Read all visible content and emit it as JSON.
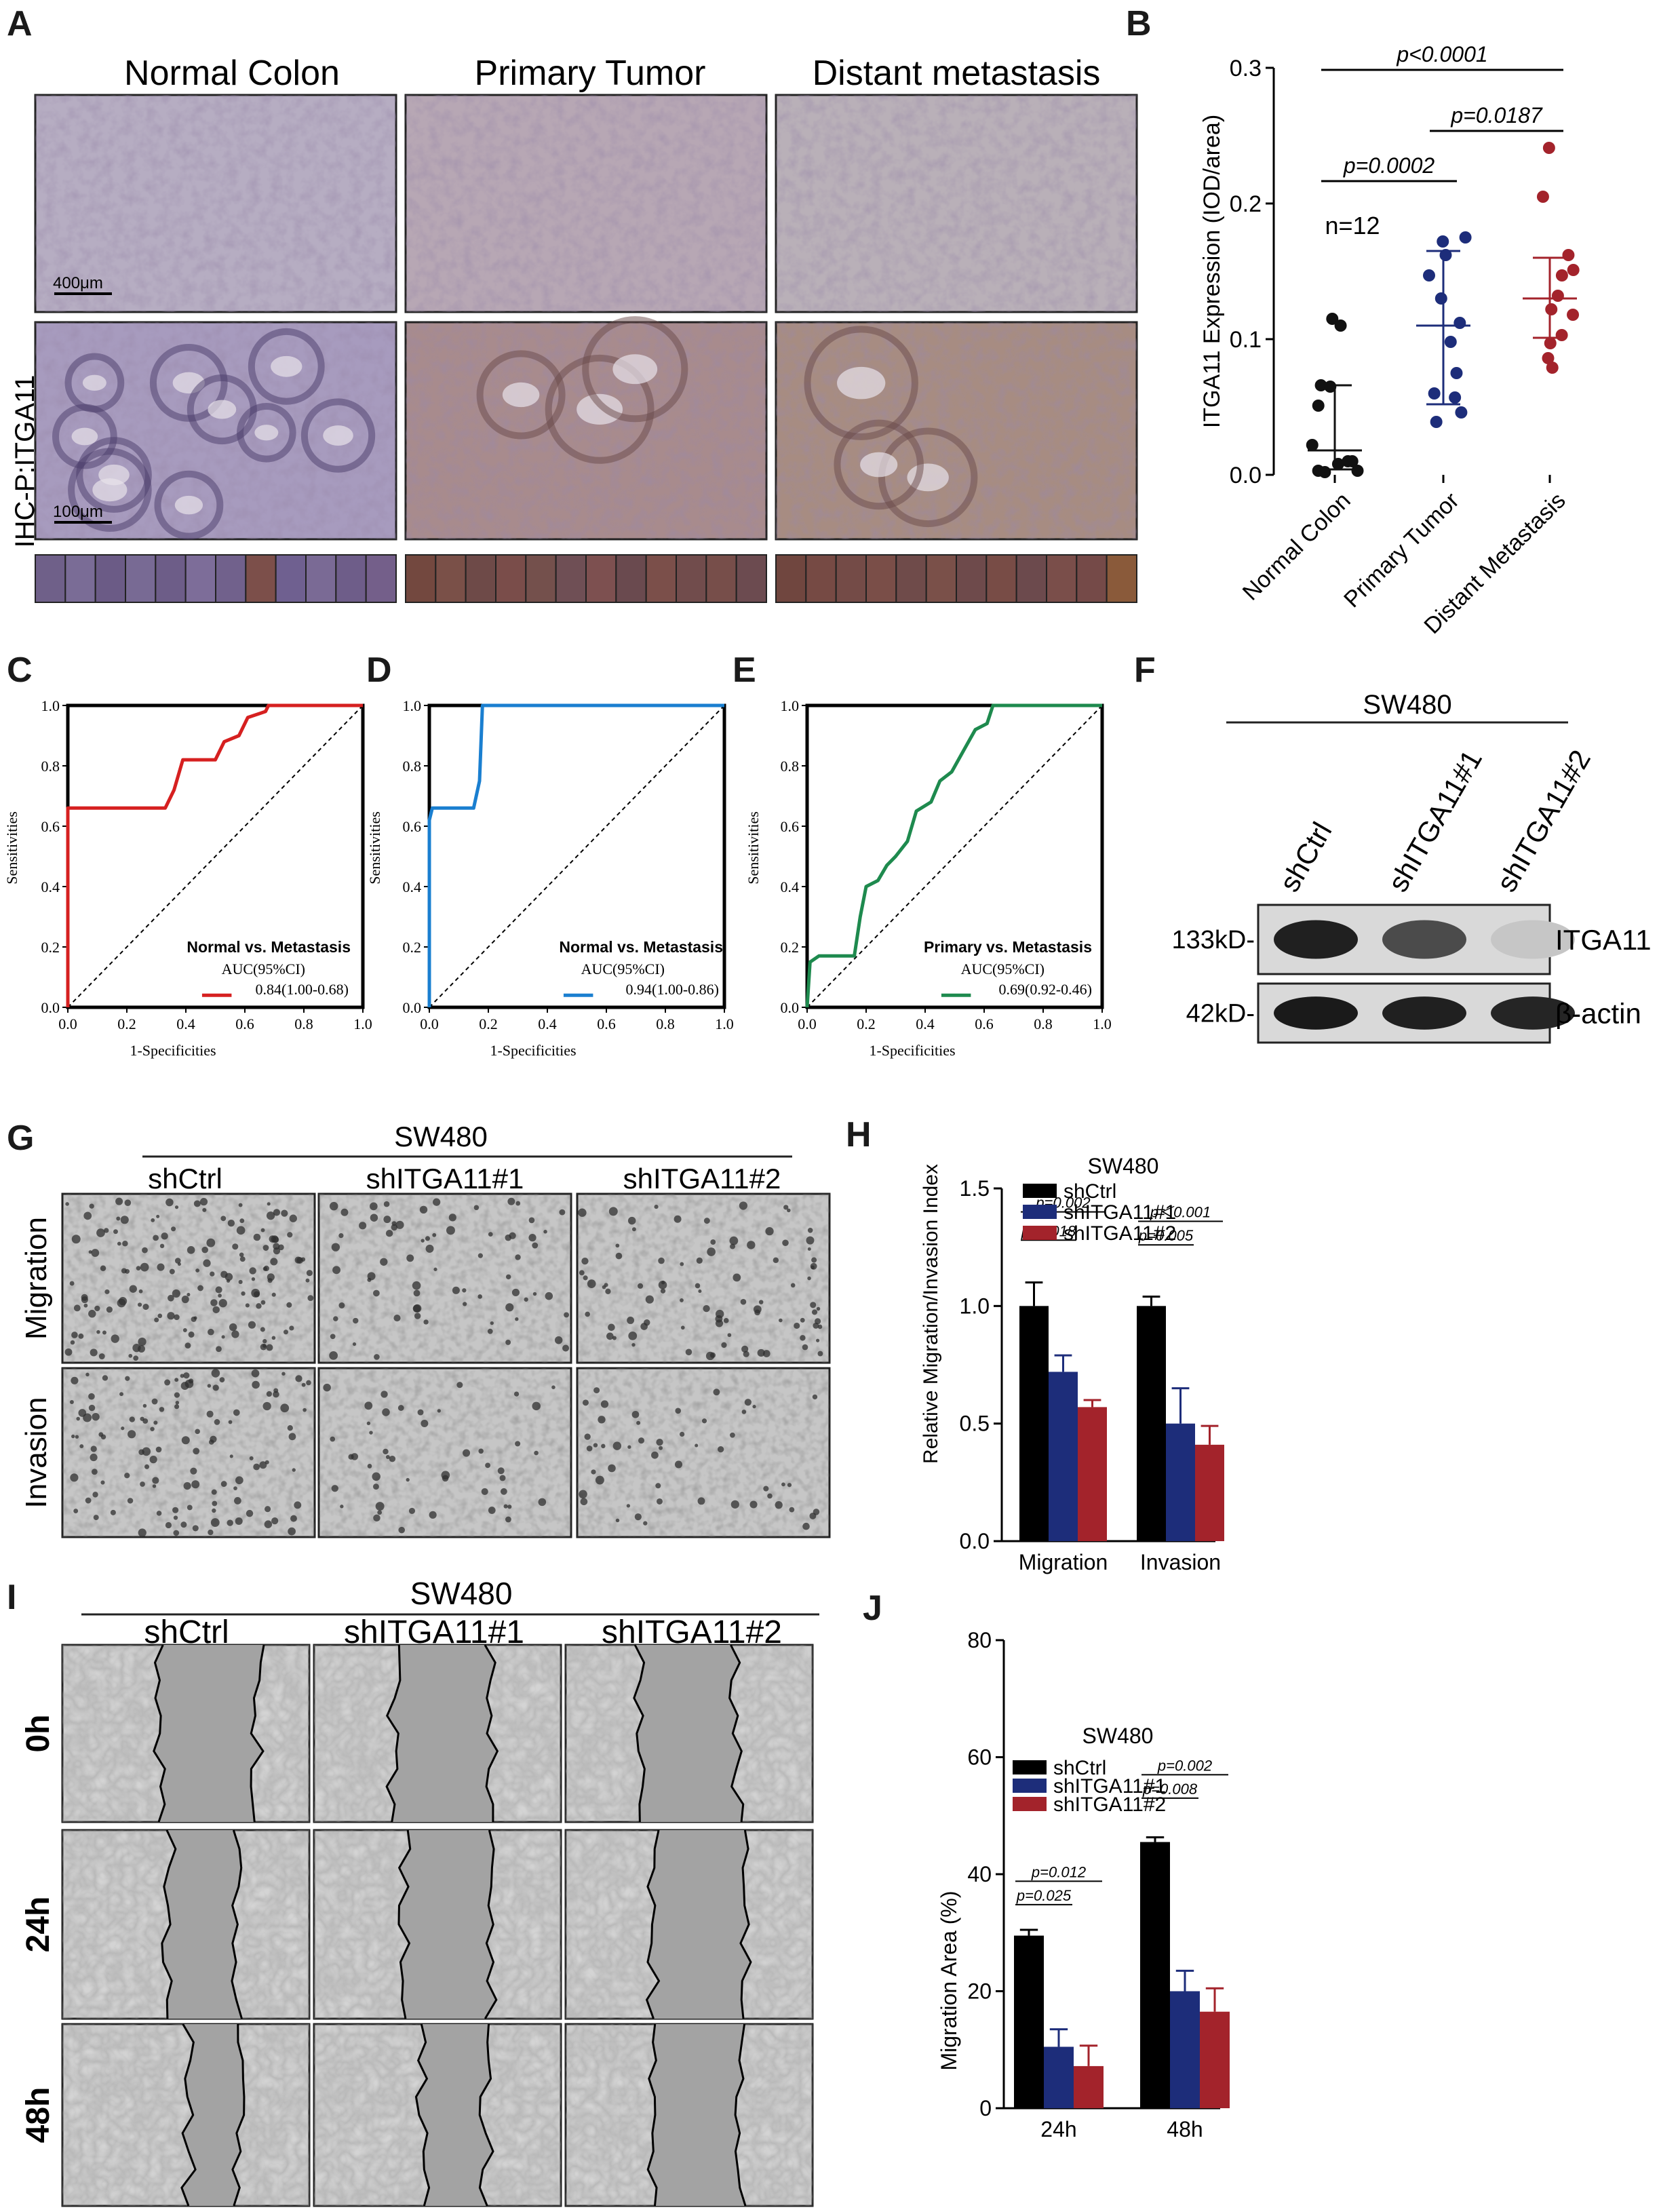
{
  "panels": {
    "A": {
      "letter": "A",
      "columns": [
        "Normal Colon",
        "Primary Tumor",
        "Distant metastasis"
      ],
      "row_label": "IHC-P:ITGA11",
      "scale_top": "400μm",
      "scale_bottom": "100μm",
      "swatches": [
        [
          "#6f6089",
          "#7a6c96",
          "#6b5b86",
          "#786a94",
          "#6d5d88",
          "#7d6d99",
          "#71618c",
          "#7c4f4a",
          "#6f6090",
          "#7a6a95",
          "#6e5d89",
          "#745f8a"
        ],
        [
          "#73483f",
          "#7a5048",
          "#6e4a48",
          "#7a4d4a",
          "#74504c",
          "#6f4f55",
          "#7d5050",
          "#6a4a4f",
          "#7b4f4a",
          "#714c4c",
          "#774e4a",
          "#6c4b50"
        ],
        [
          "#70463f",
          "#764a44",
          "#744b47",
          "#7a4e48",
          "#6f4b4a",
          "#7a5049",
          "#6e4a4b",
          "#784c46",
          "#6c4a4d",
          "#7a4e4a",
          "#754a48",
          "#8a5a3a"
        ]
      ]
    },
    "B": {
      "letter": "B",
      "chart_data": {
        "type": "scatter",
        "ylabel": "ITGA11 Expression (IOD/area)",
        "ylim": [
          0,
          0.3
        ],
        "yticks": [
          "0.0",
          "0.1",
          "0.2",
          "0.3"
        ],
        "categories": [
          "Normal Colon",
          "Primary Tumor",
          "Distant Metastasis"
        ],
        "annotation": "n=12",
        "series": [
          {
            "values": [
              0.115,
              0.11,
              0.066,
              0.065,
              0.051,
              0.022,
              0.01,
              0.008,
              0.01,
              0.003,
              0.002,
              0.003
            ],
            "median": 0.018,
            "q1": 0.004,
            "q3": 0.066,
            "color": "#111111"
          },
          {
            "values": [
              0.175,
              0.172,
              0.162,
              0.147,
              0.13,
              0.112,
              0.098,
              0.075,
              0.06,
              0.057,
              0.046,
              0.039
            ],
            "median": 0.11,
            "q1": 0.052,
            "q3": 0.165,
            "color": "#1d2d7a"
          },
          {
            "values": [
              0.241,
              0.205,
              0.162,
              0.151,
              0.147,
              0.132,
              0.122,
              0.118,
              0.103,
              0.097,
              0.086,
              0.079
            ],
            "median": 0.13,
            "q1": 0.101,
            "q3": 0.16,
            "color": "#a3232b"
          }
        ],
        "comparisons": [
          {
            "text": "p<0.0001",
            "from": 0,
            "to": 2,
            "level": 0.2985
          },
          {
            "text": "p=0.0187",
            "from": 1,
            "to": 2,
            "level": 0.2535
          },
          {
            "text": "p=0.0002",
            "from": 0,
            "to": 1,
            "level": 0.2165
          }
        ]
      }
    },
    "C": {
      "letter": "C",
      "chart_data": {
        "type": "line",
        "title": "Normal vs. Metastasis",
        "auc_header": "AUC(95%CI)",
        "auc_value": "0.84(1.00-0.68)",
        "xlabel": "1-Specificities",
        "ylabel": "Sensitivities",
        "xlim": [
          0,
          1
        ],
        "ylim": [
          0,
          1
        ],
        "ticks": [
          "0.0",
          "0.2",
          "0.4",
          "0.6",
          "0.8",
          "1.0"
        ],
        "color": "#d62020",
        "points": [
          [
            0,
            0
          ],
          [
            0,
            0.66
          ],
          [
            0.33,
            0.66
          ],
          [
            0.36,
            0.72
          ],
          [
            0.39,
            0.82
          ],
          [
            0.5,
            0.82
          ],
          [
            0.53,
            0.88
          ],
          [
            0.58,
            0.9
          ],
          [
            0.61,
            0.96
          ],
          [
            0.67,
            0.98
          ],
          [
            0.68,
            1.0
          ],
          [
            1,
            1
          ]
        ]
      }
    },
    "D": {
      "letter": "D",
      "chart_data": {
        "type": "line",
        "title": "Normal vs. Metastasis",
        "auc_header": "AUC(95%CI)",
        "auc_value": "0.94(1.00-0.86)",
        "xlabel": "1-Specificities",
        "ylabel": "Sensitivities",
        "xlim": [
          0,
          1
        ],
        "ylim": [
          0,
          1
        ],
        "ticks": [
          "0.0",
          "0.2",
          "0.4",
          "0.6",
          "0.8",
          "1.0"
        ],
        "color": "#1a7fd0",
        "points": [
          [
            0,
            0
          ],
          [
            0,
            0.62
          ],
          [
            0.01,
            0.66
          ],
          [
            0.15,
            0.66
          ],
          [
            0.17,
            0.75
          ],
          [
            0.18,
            1.0
          ],
          [
            1,
            1
          ]
        ]
      }
    },
    "E": {
      "letter": "E",
      "chart_data": {
        "type": "line",
        "title": "Primary vs. Metastasis",
        "auc_header": "AUC(95%CI)",
        "auc_value": "0.69(0.92-0.46)",
        "xlabel": "1-Specificities",
        "ylabel": "Sensitivities",
        "xlim": [
          0,
          1
        ],
        "ylim": [
          0,
          1
        ],
        "ticks": [
          "0.0",
          "0.2",
          "0.4",
          "0.6",
          "0.8",
          "1.0"
        ],
        "color": "#1e8a4e",
        "points": [
          [
            0,
            0
          ],
          [
            0.01,
            0.15
          ],
          [
            0.04,
            0.17
          ],
          [
            0.16,
            0.17
          ],
          [
            0.18,
            0.3
          ],
          [
            0.2,
            0.4
          ],
          [
            0.24,
            0.42
          ],
          [
            0.27,
            0.47
          ],
          [
            0.3,
            0.5
          ],
          [
            0.34,
            0.55
          ],
          [
            0.37,
            0.65
          ],
          [
            0.42,
            0.68
          ],
          [
            0.45,
            0.75
          ],
          [
            0.49,
            0.78
          ],
          [
            0.53,
            0.85
          ],
          [
            0.57,
            0.92
          ],
          [
            0.61,
            0.94
          ],
          [
            0.63,
            1.0
          ],
          [
            1,
            1
          ]
        ]
      }
    },
    "F": {
      "letter": "F",
      "cell_line": "SW480",
      "lanes": [
        "shCtrl",
        "shITGA11#1",
        "shITGA11#2"
      ],
      "bands": [
        {
          "weight": "133kD-",
          "name": "ITGA11",
          "intensity": [
            0.92,
            0.72,
            0.15
          ]
        },
        {
          "weight": "42kD-",
          "name": "β-actin",
          "intensity": [
            0.95,
            0.92,
            0.9
          ]
        }
      ]
    },
    "G": {
      "letter": "G",
      "cell_line": "SW480",
      "columns": [
        "shCtrl",
        "shITGA11#1",
        "shITGA11#2"
      ],
      "rows": [
        "Migration",
        "Invasion"
      ],
      "density": [
        [
          0.95,
          0.45,
          0.55
        ],
        [
          0.75,
          0.3,
          0.32
        ]
      ]
    },
    "H": {
      "letter": "H",
      "chart_data": {
        "type": "bar",
        "title": "SW480",
        "ylabel": "Relative Migration/Invasion Index",
        "ylim": [
          0,
          1.5
        ],
        "yticks": [
          "0.0",
          "0.5",
          "1.0",
          "1.5"
        ],
        "categories": [
          "Migration",
          "Invasion"
        ],
        "series": [
          {
            "name": "shCtrl",
            "values": [
              1.0,
              1.0
            ],
            "errors": [
              0.1,
              0.04
            ],
            "color": "#000000"
          },
          {
            "name": "shITGA11#1",
            "values": [
              0.72,
              0.5
            ],
            "errors": [
              0.07,
              0.15
            ],
            "color": "#1d2d7a"
          },
          {
            "name": "shITGA11#2",
            "values": [
              0.57,
              0.41
            ],
            "errors": [
              0.03,
              0.08
            ],
            "color": "#a3232b"
          }
        ],
        "annotations": [
          {
            "text": "p=0.002",
            "group": 0,
            "from": 0,
            "to": 2,
            "level": 1.4
          },
          {
            "text": "p=0.018",
            "group": 0,
            "from": 0,
            "to": 1,
            "level": 1.28
          },
          {
            "text": "p＜0.001",
            "group": 1,
            "from": 0,
            "to": 2,
            "level": 1.36
          },
          {
            "text": "p=0.005",
            "group": 1,
            "from": 0,
            "to": 1,
            "level": 1.26
          }
        ]
      }
    },
    "I": {
      "letter": "I",
      "cell_line": "SW480",
      "columns": [
        "shCtrl",
        "shITGA11#1",
        "shITGA11#2"
      ],
      "rows": [
        "0h",
        "24h",
        "48h"
      ],
      "gaps": [
        [
          [
            0.4,
            0.79
          ],
          [
            0.32,
            0.72
          ],
          [
            0.3,
            0.69
          ]
        ],
        [
          [
            0.43,
            0.71
          ],
          [
            0.37,
            0.72
          ],
          [
            0.35,
            0.73
          ]
        ],
        [
          [
            0.51,
            0.71
          ],
          [
            0.44,
            0.7
          ],
          [
            0.35,
            0.71
          ]
        ]
      ]
    },
    "J": {
      "letter": "J",
      "chart_data": {
        "type": "bar",
        "title": "SW480",
        "ylabel": "Migration Area (%)",
        "ylim": [
          0,
          80
        ],
        "yticks": [
          "0",
          "20",
          "40",
          "60",
          "80"
        ],
        "categories": [
          "24h",
          "48h"
        ],
        "series": [
          {
            "name": "shCtrl",
            "values": [
              29.5,
              45.5
            ],
            "errors": [
              1.0,
              0.8
            ],
            "color": "#000000"
          },
          {
            "name": "shITGA11#1",
            "values": [
              10.5,
              20.0
            ],
            "errors": [
              3.0,
              3.5
            ],
            "color": "#1d2d7a"
          },
          {
            "name": "shITGA11#2",
            "values": [
              7.2,
              16.5
            ],
            "errors": [
              3.5,
              4.0
            ],
            "color": "#a3232b"
          }
        ],
        "annotations": [
          {
            "text": "p=0.012",
            "group": 0,
            "from": 0,
            "to": 2,
            "level": 38.8
          },
          {
            "text": "p=0.025",
            "group": 0,
            "from": 0,
            "to": 1,
            "level": 34.8
          },
          {
            "text": "p=0.002",
            "group": 1,
            "from": 0,
            "to": 2,
            "level": 57.0
          },
          {
            "text": "p=0.008",
            "group": 1,
            "from": 0,
            "to": 1,
            "level": 53.0
          }
        ]
      }
    }
  }
}
